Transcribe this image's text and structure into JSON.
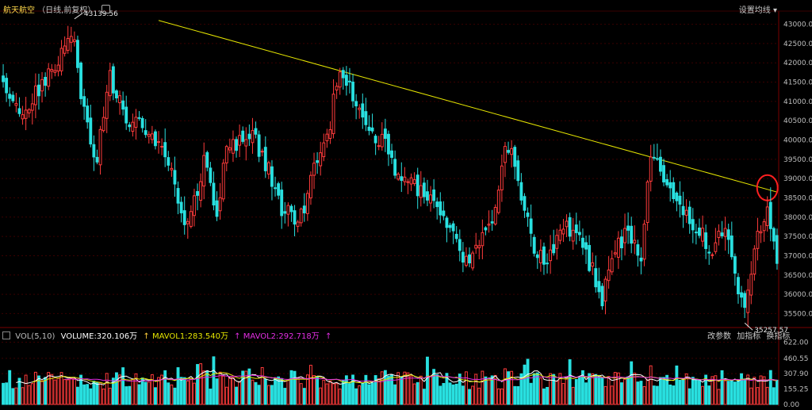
{
  "header": {
    "title": "航天航空",
    "subtitle": "（日线,前复权）",
    "settings_label": "设置均线"
  },
  "indicator_bar": {
    "name": "VOL(5,10)",
    "volume": "VOLUME:320.106万",
    "mavol1": "MAVOL1:283.540万",
    "mavol2": "MAVOL2:292.718万",
    "buttons": [
      "改参数",
      "加指标",
      "换指标"
    ]
  },
  "colors": {
    "up": "#ff3b3b",
    "down": "#29e0e0",
    "trend": "#e6e600",
    "ma1": "#ffffff",
    "ma2": "#e4e400",
    "ma3": "#e22ee2",
    "grid": "#3a0000",
    "highlight_circle": "#ff2020"
  },
  "chart_data": [
    {
      "type": "candlestick",
      "ylim": [
        35200,
        43300
      ],
      "yticks": [
        35500,
        36000,
        36500,
        37000,
        37500,
        38000,
        38500,
        39000,
        39500,
        40000,
        40500,
        41000,
        41500,
        42000,
        42500,
        43000
      ],
      "annotations": {
        "max": "43139.56",
        "min": "35257.57"
      },
      "trendline": {
        "from": {
          "index": 48,
          "value": 43100
        },
        "to": {
          "index": 239,
          "value": 38650
        }
      },
      "highlight_index": 236,
      "anchors": [
        [
          0,
          41500
        ],
        [
          6,
          40600
        ],
        [
          11,
          41300
        ],
        [
          16,
          41800
        ],
        [
          19,
          42500
        ],
        [
          22,
          42700
        ],
        [
          24,
          41000
        ],
        [
          29,
          39500
        ],
        [
          33,
          41600
        ],
        [
          39,
          40500
        ],
        [
          45,
          40200
        ],
        [
          50,
          39600
        ],
        [
          53,
          38800
        ],
        [
          56,
          37800
        ],
        [
          59,
          38500
        ],
        [
          62,
          39400
        ],
        [
          66,
          38200
        ],
        [
          69,
          39800
        ],
        [
          73,
          40000
        ],
        [
          77,
          40200
        ],
        [
          82,
          39200
        ],
        [
          86,
          38200
        ],
        [
          92,
          38000
        ],
        [
          96,
          39300
        ],
        [
          100,
          40000
        ],
        [
          104,
          42000
        ],
        [
          108,
          41200
        ],
        [
          112,
          40300
        ],
        [
          117,
          40000
        ],
        [
          121,
          39300
        ],
        [
          126,
          38800
        ],
        [
          131,
          38500
        ],
        [
          135,
          38000
        ],
        [
          140,
          37300
        ],
        [
          144,
          36700
        ],
        [
          148,
          37500
        ],
        [
          151,
          37800
        ],
        [
          154,
          39500
        ],
        [
          157,
          39800
        ],
        [
          160,
          38400
        ],
        [
          164,
          37200
        ],
        [
          168,
          36900
        ],
        [
          173,
          37700
        ],
        [
          177,
          37500
        ],
        [
          181,
          36800
        ],
        [
          185,
          35900
        ],
        [
          189,
          37200
        ],
        [
          193,
          37700
        ],
        [
          197,
          37100
        ],
        [
          200,
          39600
        ],
        [
          203,
          39300
        ],
        [
          207,
          38600
        ],
        [
          211,
          38100
        ],
        [
          215,
          37600
        ],
        [
          219,
          37100
        ],
        [
          223,
          37800
        ],
        [
          226,
          36400
        ],
        [
          229,
          35600
        ],
        [
          233,
          37600
        ],
        [
          236,
          38300
        ],
        [
          239,
          36800
        ]
      ]
    },
    {
      "type": "bar",
      "name": "VOL",
      "ylim": [
        0,
        650
      ],
      "yticks": [
        0,
        155.25,
        307.9,
        460.55,
        622.0
      ],
      "ytick_labels": [
        "0.00",
        "155.25",
        "307.90",
        "460.55",
        "622.00"
      ]
    }
  ]
}
